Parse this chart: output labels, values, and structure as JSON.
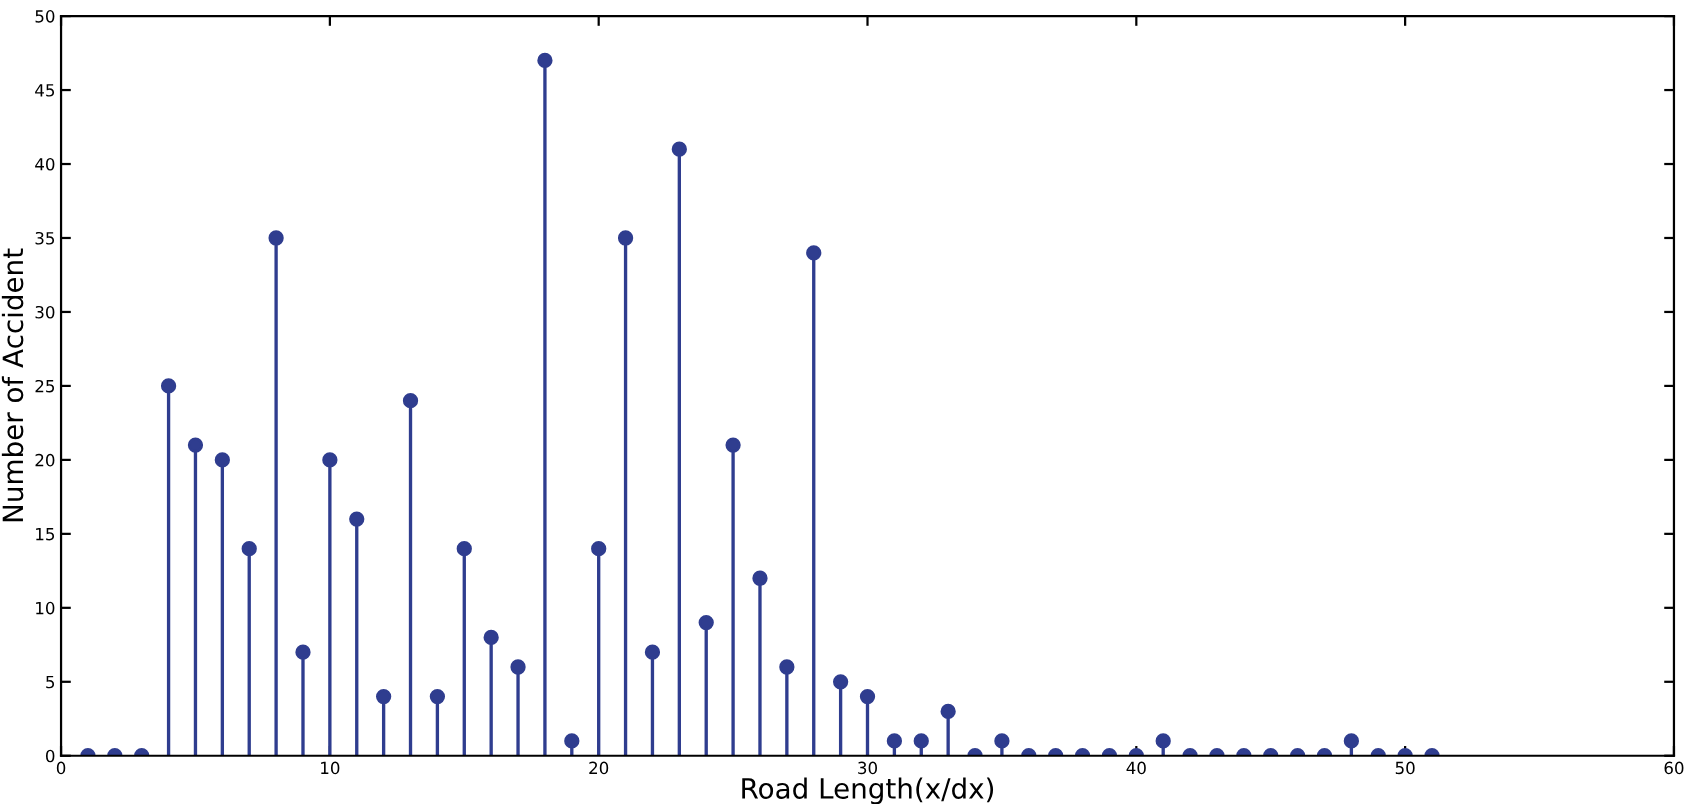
{
  "chart_data": {
    "type": "lollipop",
    "xlabel": "Road Length(x/dx)",
    "ylabel": "Number of Accident",
    "x": [
      1,
      2,
      3,
      4,
      5,
      6,
      7,
      8,
      9,
      10,
      11,
      12,
      13,
      14,
      15,
      16,
      17,
      18,
      19,
      20,
      21,
      22,
      23,
      24,
      25,
      26,
      27,
      28,
      29,
      30,
      31,
      32,
      33,
      34,
      35,
      36,
      37,
      38,
      39,
      40,
      41,
      42,
      43,
      44,
      45,
      46,
      47,
      48,
      49,
      50,
      51
    ],
    "values": [
      0,
      0,
      0,
      25,
      21,
      20,
      14,
      35,
      7,
      20,
      16,
      4,
      24,
      4,
      14,
      8,
      6,
      47,
      1,
      14,
      35,
      7,
      41,
      9,
      21,
      12,
      6,
      34,
      5,
      4,
      1,
      1,
      3,
      0,
      1,
      0,
      0,
      0,
      0,
      0,
      1,
      0,
      0,
      0,
      0,
      0,
      0,
      1,
      0,
      0,
      0
    ],
    "color": "#2f3d8f",
    "marker": "circle",
    "grid": false,
    "xlim": [
      0,
      60
    ],
    "xticks": [
      0,
      10,
      20,
      30,
      40,
      50,
      60
    ],
    "ylim": [
      0,
      50
    ],
    "yticks": [
      0,
      5,
      10,
      15,
      20,
      25,
      30,
      35,
      40,
      45,
      50
    ]
  }
}
